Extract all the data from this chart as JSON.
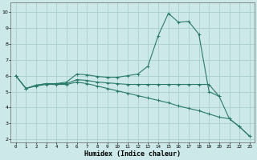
{
  "xlabel": "Humidex (Indice chaleur)",
  "bg_color": "#cce8e8",
  "line_color": "#2a7a6a",
  "grid_color": "#aacfcf",
  "xlim": [
    -0.5,
    23.5
  ],
  "ylim": [
    1.8,
    10.6
  ],
  "xticks": [
    0,
    1,
    2,
    3,
    4,
    5,
    6,
    7,
    8,
    9,
    10,
    11,
    12,
    13,
    14,
    15,
    16,
    17,
    18,
    19,
    20,
    21,
    22,
    23
  ],
  "yticks": [
    2,
    3,
    4,
    5,
    6,
    7,
    8,
    9,
    10
  ],
  "lines": [
    {
      "x": [
        0,
        1,
        2,
        3,
        4,
        5,
        6,
        7,
        8,
        9,
        10,
        11,
        12,
        13,
        14,
        15,
        16,
        17,
        18,
        19,
        20,
        21,
        22,
        23
      ],
      "y": [
        6.0,
        5.2,
        5.4,
        5.5,
        5.5,
        5.6,
        6.1,
        6.05,
        5.95,
        5.9,
        5.9,
        6.0,
        6.1,
        6.6,
        8.5,
        9.9,
        9.35,
        9.4,
        8.6,
        5.0,
        4.7,
        null,
        null,
        null
      ]
    },
    {
      "x": [
        0,
        1,
        2,
        3,
        4,
        5,
        6,
        7,
        8,
        9,
        10,
        11,
        12,
        13,
        14,
        15,
        16,
        17,
        18,
        19,
        20,
        21,
        22,
        23
      ],
      "y": [
        6.0,
        5.2,
        5.4,
        5.5,
        5.5,
        5.5,
        5.75,
        5.7,
        5.6,
        5.55,
        5.5,
        5.45,
        5.45,
        5.45,
        5.45,
        5.45,
        5.45,
        5.45,
        5.45,
        5.45,
        4.7,
        3.3,
        2.8,
        2.2
      ]
    },
    {
      "x": [
        0,
        1,
        2,
        3,
        4,
        5,
        6,
        7,
        8,
        9,
        10,
        11,
        12,
        13,
        14,
        15,
        16,
        17,
        18,
        19,
        20,
        21,
        22,
        23
      ],
      "y": [
        6.0,
        5.2,
        5.35,
        5.45,
        5.45,
        5.45,
        5.6,
        5.5,
        5.35,
        5.2,
        5.05,
        4.9,
        4.75,
        4.6,
        4.45,
        4.3,
        4.1,
        3.95,
        3.8,
        3.6,
        3.4,
        3.3,
        2.8,
        2.2
      ]
    }
  ]
}
